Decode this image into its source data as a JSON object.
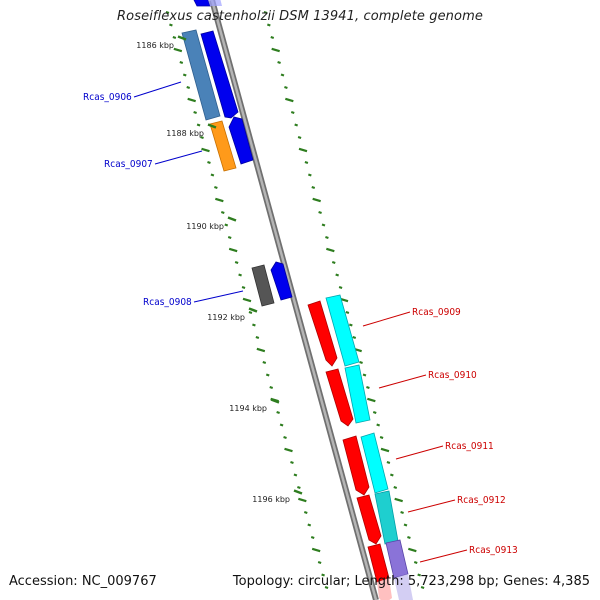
{
  "title": "Roseiflexus castenholzii DSM 13941, complete genome",
  "accession_text": "Accession: NC_009767",
  "topology_text": "Topology: circular; Length: 5,723,298 bp; Genes: 4,385",
  "colors": {
    "backbone": "#8a8a8a",
    "tick": "#2e7d1f",
    "forward_label": "#0000cc",
    "reverse_label": "#cc0000"
  },
  "kbp_ticks": [
    {
      "label": "1186 kbp"
    },
    {
      "label": "1188 kbp"
    },
    {
      "label": "1190 kbp"
    },
    {
      "label": "1192 kbp"
    },
    {
      "label": "1194 kbp"
    },
    {
      "label": "1196 kbp"
    }
  ],
  "gene_labels": [
    {
      "name": "Rcas_0906",
      "strand": "forward"
    },
    {
      "name": "Rcas_0907",
      "strand": "forward"
    },
    {
      "name": "Rcas_0908",
      "strand": "forward"
    },
    {
      "name": "Rcas_0909",
      "strand": "reverse"
    },
    {
      "name": "Rcas_0910",
      "strand": "reverse"
    },
    {
      "name": "Rcas_0911",
      "strand": "reverse"
    },
    {
      "name": "Rcas_0912",
      "strand": "reverse"
    },
    {
      "name": "Rcas_0913",
      "strand": "reverse"
    }
  ]
}
